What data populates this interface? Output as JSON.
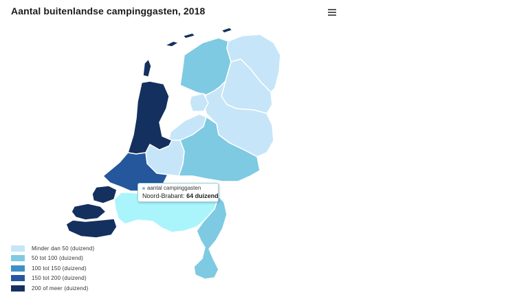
{
  "title": "Aantal buitenlandse campinggasten, 2018",
  "menu": {
    "icon": "hamburger-menu-icon"
  },
  "map_data": {
    "type": "choropleth",
    "region": "Nederland",
    "provinces": [
      {
        "name": "Groningen",
        "class": 0
      },
      {
        "name": "Friesland",
        "class": 1
      },
      {
        "name": "Drenthe",
        "class": 0
      },
      {
        "name": "Overijssel",
        "class": 0
      },
      {
        "name": "Flevoland",
        "class": 0
      },
      {
        "name": "Gelderland",
        "class": 1
      },
      {
        "name": "Utrecht",
        "class": 0
      },
      {
        "name": "Noord-Holland",
        "class": 4
      },
      {
        "name": "Zuid-Holland",
        "class": 3
      },
      {
        "name": "Zeeland",
        "class": 4
      },
      {
        "name": "Noord-Brabant",
        "class": 1,
        "hovered": true
      },
      {
        "name": "Limburg",
        "class": 1
      }
    ],
    "hover_color": "#aaf5fb"
  },
  "tooltip": {
    "series": "aantal campinggasten",
    "region": "Noord-Brabant",
    "separator": ": ",
    "value": "64 duizend"
  },
  "legend": [
    {
      "label": "Minder dan 50 (duizend)",
      "color": "#c6e5f8"
    },
    {
      "label": "50 tot 100 (duizend)",
      "color": "#7ecae2"
    },
    {
      "label": "100 tot 150 (duizend)",
      "color": "#3f8fc6"
    },
    {
      "label": "150 tot 200 (duizend)",
      "color": "#25579c"
    },
    {
      "label": "200 of meer (duizend)",
      "color": "#14305e"
    }
  ]
}
